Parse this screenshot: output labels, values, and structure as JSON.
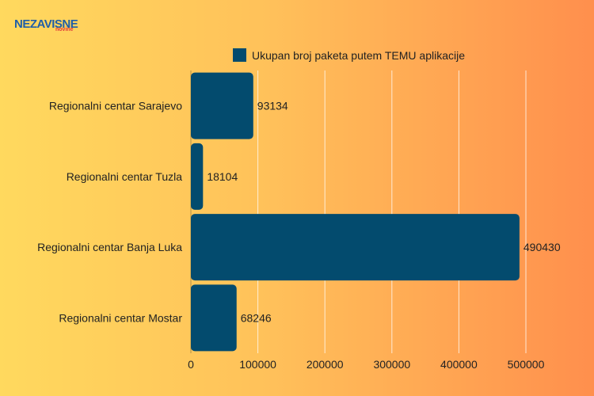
{
  "brand": {
    "logo_text": "NEZAVISNE",
    "logo_sub": "novine",
    "logo_color": "#1f5fa8",
    "sub_color": "#e03a3a"
  },
  "chart_data": {
    "type": "bar",
    "orientation": "horizontal",
    "title": "",
    "xlabel": "",
    "ylabel": "",
    "categories": [
      "Regionalni centar Sarajevo",
      "Regionalni centar Tuzla",
      "Regionalni centar Banja Luka",
      "Regionalni centar Mostar"
    ],
    "series": [
      {
        "name": "Ukupan broj paketa putem TEMU aplikacije",
        "values": [
          93134,
          18104,
          490430,
          68246
        ],
        "color": "#034b6e"
      }
    ],
    "xlim": [
      0,
      500000
    ],
    "xticks": [
      0,
      100000,
      200000,
      300000,
      400000,
      500000
    ],
    "tick_labels": [
      "0",
      "100000",
      "200000",
      "300000",
      "400000",
      "500000"
    ],
    "grid": true,
    "legend_position": "top"
  }
}
